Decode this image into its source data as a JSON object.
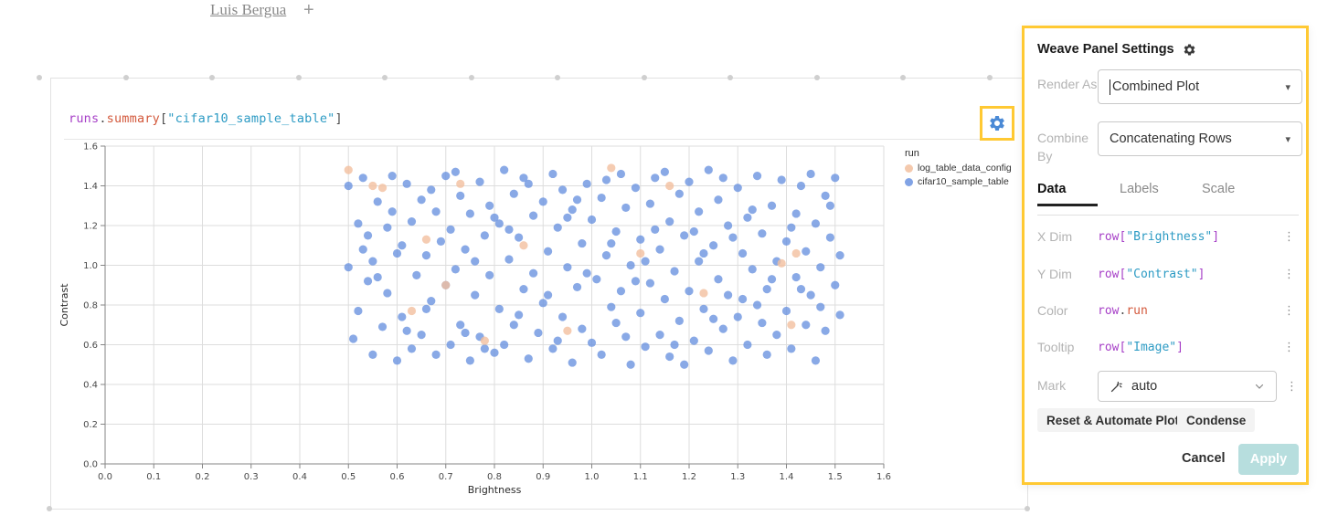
{
  "colors": {
    "highlight": "#FFC933",
    "gear_blue": "#4B8AD6",
    "apply_bg": "#B7DEDE",
    "series_peach": "#F2BF9F",
    "series_blue": "#6B93E0"
  },
  "breadcrumb": {
    "user": "Luis Bergua",
    "add": "+"
  },
  "panel": {
    "expression_tokens": [
      {
        "t": "runs",
        "c": "purple"
      },
      {
        "t": ".",
        "c": "plain"
      },
      {
        "t": "summary",
        "c": "orange"
      },
      {
        "t": "[",
        "c": "plain"
      },
      {
        "t": "\"cifar10_sample_table\"",
        "c": "string"
      },
      {
        "t": "]",
        "c": "plain"
      }
    ]
  },
  "chart_data": {
    "type": "scatter",
    "title": "",
    "xlabel": "Brightness",
    "ylabel": "Contrast",
    "xlim": [
      0,
      1.6
    ],
    "ylim": [
      0,
      1.6
    ],
    "xtick_step": 0.1,
    "ytick_step": 0.2,
    "grid": true,
    "legend_title": "run",
    "legend_position": "right",
    "series": [
      {
        "name": "log_table_data_config",
        "color": "#F2BF9F",
        "points": [
          [
            0.5,
            1.48
          ],
          [
            0.55,
            1.4
          ],
          [
            0.57,
            1.39
          ],
          [
            0.66,
            1.13
          ],
          [
            0.7,
            0.9
          ],
          [
            0.73,
            1.41
          ],
          [
            0.86,
            1.1
          ],
          [
            1.04,
            1.49
          ],
          [
            1.16,
            1.4
          ],
          [
            1.1,
            1.06
          ],
          [
            1.39,
            1.01
          ],
          [
            1.42,
            1.06
          ],
          [
            1.23,
            0.86
          ],
          [
            0.95,
            0.67
          ],
          [
            0.78,
            0.62
          ],
          [
            1.41,
            0.7
          ],
          [
            0.63,
            0.77
          ]
        ]
      },
      {
        "name": "cifar10_sample_table",
        "color": "#6B93E0",
        "points": [
          [
            0.5,
            1.4
          ],
          [
            0.5,
            0.99
          ],
          [
            0.51,
            0.63
          ],
          [
            0.52,
            1.21
          ],
          [
            0.52,
            0.77
          ],
          [
            0.53,
            1.44
          ],
          [
            0.54,
            0.92
          ],
          [
            0.55,
            0.55
          ],
          [
            0.55,
            1.02
          ],
          [
            0.56,
            1.32
          ],
          [
            0.57,
            0.69
          ],
          [
            0.58,
            1.19
          ],
          [
            0.58,
            0.86
          ],
          [
            0.59,
            1.45
          ],
          [
            0.6,
            0.52
          ],
          [
            0.61,
            1.1
          ],
          [
            0.61,
            0.74
          ],
          [
            0.62,
            1.41
          ],
          [
            0.63,
            0.58
          ],
          [
            0.63,
            1.22
          ],
          [
            0.64,
            0.95
          ],
          [
            0.65,
            1.33
          ],
          [
            0.65,
            0.65
          ],
          [
            0.66,
            1.05
          ],
          [
            0.67,
            0.82
          ],
          [
            0.68,
            1.27
          ],
          [
            0.68,
            0.55
          ],
          [
            0.69,
            1.12
          ],
          [
            0.7,
            0.9
          ],
          [
            0.7,
            1.45
          ],
          [
            0.71,
            0.6
          ],
          [
            0.71,
            1.18
          ],
          [
            0.72,
            0.98
          ],
          [
            0.73,
            1.35
          ],
          [
            0.73,
            0.7
          ],
          [
            0.74,
            1.08
          ],
          [
            0.75,
            0.52
          ],
          [
            0.75,
            1.26
          ],
          [
            0.76,
            0.85
          ],
          [
            0.77,
            1.42
          ],
          [
            0.77,
            0.64
          ],
          [
            0.78,
            1.15
          ],
          [
            0.79,
            0.95
          ],
          [
            0.79,
            1.3
          ],
          [
            0.8,
            0.56
          ],
          [
            0.81,
            1.21
          ],
          [
            0.81,
            0.78
          ],
          [
            0.82,
            1.48
          ],
          [
            0.82,
            0.6
          ],
          [
            0.83,
            1.03
          ],
          [
            0.84,
            1.36
          ],
          [
            0.84,
            0.7
          ],
          [
            0.85,
            1.14
          ],
          [
            0.86,
            0.88
          ],
          [
            0.86,
            1.44
          ],
          [
            0.87,
            0.53
          ],
          [
            0.88,
            1.25
          ],
          [
            0.88,
            0.96
          ],
          [
            0.89,
            0.66
          ],
          [
            0.9,
            1.32
          ],
          [
            0.9,
            0.81
          ],
          [
            0.91,
            1.07
          ],
          [
            0.92,
            1.46
          ],
          [
            0.92,
            0.58
          ],
          [
            0.93,
            1.19
          ],
          [
            0.94,
            0.74
          ],
          [
            0.94,
            1.38
          ],
          [
            0.95,
            0.99
          ],
          [
            0.96,
            1.28
          ],
          [
            0.96,
            0.51
          ],
          [
            0.97,
            0.89
          ],
          [
            0.98,
            1.11
          ],
          [
            0.98,
            0.68
          ],
          [
            0.99,
            1.41
          ],
          [
            1.0,
            0.61
          ],
          [
            1.0,
            1.23
          ],
          [
            1.01,
            0.93
          ],
          [
            1.02,
            1.34
          ],
          [
            1.02,
            0.55
          ],
          [
            1.03,
            1.05
          ],
          [
            1.04,
            0.79
          ],
          [
            1.05,
            1.17
          ],
          [
            1.05,
            0.71
          ],
          [
            1.06,
            1.46
          ],
          [
            1.06,
            0.87
          ],
          [
            1.07,
            1.29
          ],
          [
            1.08,
            0.5
          ],
          [
            1.08,
            1.0
          ],
          [
            1.09,
            1.39
          ],
          [
            1.1,
            0.76
          ],
          [
            1.1,
            1.13
          ],
          [
            1.11,
            0.59
          ],
          [
            1.12,
            1.31
          ],
          [
            1.12,
            0.91
          ],
          [
            1.13,
            1.44
          ],
          [
            1.14,
            0.65
          ],
          [
            1.14,
            1.08
          ],
          [
            1.15,
            0.83
          ],
          [
            1.16,
            1.22
          ],
          [
            1.16,
            0.54
          ],
          [
            1.17,
            0.97
          ],
          [
            1.18,
            1.36
          ],
          [
            1.18,
            0.72
          ],
          [
            1.19,
            1.15
          ],
          [
            1.2,
            0.87
          ],
          [
            1.2,
            1.42
          ],
          [
            1.21,
            0.62
          ],
          [
            1.22,
            1.02
          ],
          [
            1.22,
            1.27
          ],
          [
            1.23,
            0.78
          ],
          [
            1.24,
            1.48
          ],
          [
            1.24,
            0.57
          ],
          [
            1.25,
            1.1
          ],
          [
            1.26,
            0.93
          ],
          [
            1.26,
            1.33
          ],
          [
            1.27,
            0.68
          ],
          [
            1.28,
            1.2
          ],
          [
            1.28,
            0.85
          ],
          [
            1.29,
            0.52
          ],
          [
            1.3,
            1.39
          ],
          [
            1.3,
            0.74
          ],
          [
            1.31,
            1.06
          ],
          [
            1.32,
            1.24
          ],
          [
            1.32,
            0.6
          ],
          [
            1.33,
            0.98
          ],
          [
            1.34,
            1.45
          ],
          [
            1.34,
            0.8
          ],
          [
            1.35,
            1.16
          ],
          [
            1.36,
            0.55
          ],
          [
            1.36,
            0.88
          ],
          [
            1.37,
            1.3
          ],
          [
            1.38,
            0.65
          ],
          [
            1.38,
            1.02
          ],
          [
            1.39,
            1.43
          ],
          [
            1.4,
            0.77
          ],
          [
            1.4,
            1.12
          ],
          [
            1.41,
            0.58
          ],
          [
            1.42,
            1.26
          ],
          [
            1.42,
            0.94
          ],
          [
            1.43,
            1.4
          ],
          [
            1.44,
            0.7
          ],
          [
            1.44,
            1.07
          ],
          [
            1.45,
            0.85
          ],
          [
            1.46,
            1.21
          ],
          [
            1.46,
            0.52
          ],
          [
            1.47,
            0.99
          ],
          [
            1.48,
            1.35
          ],
          [
            1.48,
            0.67
          ],
          [
            1.49,
            1.14
          ],
          [
            1.5,
            0.9
          ],
          [
            1.5,
            1.44
          ],
          [
            1.51,
            0.75
          ],
          [
            0.53,
            1.08
          ],
          [
            0.56,
            0.94
          ],
          [
            0.59,
            1.27
          ],
          [
            0.62,
            0.67
          ],
          [
            0.67,
            1.38
          ],
          [
            0.72,
            1.47
          ],
          [
            0.74,
            0.66
          ],
          [
            0.78,
            0.58
          ],
          [
            0.83,
            1.18
          ],
          [
            0.87,
            1.41
          ],
          [
            0.91,
            0.85
          ],
          [
            0.93,
            0.62
          ],
          [
            0.97,
            1.33
          ],
          [
            0.99,
            0.96
          ],
          [
            1.03,
            1.43
          ],
          [
            1.07,
            0.64
          ],
          [
            1.09,
            0.92
          ],
          [
            1.13,
            1.18
          ],
          [
            1.15,
            1.47
          ],
          [
            1.17,
            0.6
          ],
          [
            1.21,
            1.17
          ],
          [
            1.25,
            0.73
          ],
          [
            1.27,
            1.44
          ],
          [
            1.31,
            0.83
          ],
          [
            1.33,
            1.28
          ],
          [
            1.37,
            0.93
          ],
          [
            1.41,
            1.19
          ],
          [
            1.45,
            1.46
          ],
          [
            1.47,
            0.79
          ],
          [
            1.49,
            1.3
          ],
          [
            0.54,
            1.15
          ],
          [
            0.6,
            1.06
          ],
          [
            0.66,
            0.78
          ],
          [
            0.76,
            1.02
          ],
          [
            0.8,
            1.24
          ],
          [
            0.85,
            0.75
          ],
          [
            0.95,
            1.24
          ],
          [
            1.04,
            1.11
          ],
          [
            1.11,
            1.02
          ],
          [
            1.19,
            0.5
          ],
          [
            1.23,
            1.06
          ],
          [
            1.29,
            1.14
          ],
          [
            1.35,
            0.71
          ],
          [
            1.43,
            0.88
          ],
          [
            1.51,
            1.05
          ]
        ]
      }
    ]
  },
  "settings": {
    "title": "Weave Panel Settings",
    "render_as": {
      "label": "Render As",
      "value": "Combined Plot"
    },
    "combine_by": {
      "label": "Combine By",
      "value": "Concatenating Rows"
    },
    "tabs": [
      {
        "label": "Data"
      },
      {
        "label": "Labels"
      },
      {
        "label": "Scale"
      }
    ],
    "fields": [
      {
        "label": "X Dim",
        "tokens": [
          {
            "t": "row",
            "c": "purple"
          },
          {
            "t": "[",
            "c": "purple"
          },
          {
            "t": "\"Brightness\"",
            "c": "string"
          },
          {
            "t": "]",
            "c": "purple"
          }
        ]
      },
      {
        "label": "Y Dim",
        "tokens": [
          {
            "t": "row",
            "c": "purple"
          },
          {
            "t": "[",
            "c": "purple"
          },
          {
            "t": "\"Contrast\"",
            "c": "string"
          },
          {
            "t": "]",
            "c": "purple"
          }
        ]
      },
      {
        "label": "Color",
        "tokens": [
          {
            "t": "row",
            "c": "purple"
          },
          {
            "t": ".",
            "c": "plain"
          },
          {
            "t": "run",
            "c": "orange"
          }
        ]
      },
      {
        "label": "Tooltip",
        "tokens": [
          {
            "t": "row",
            "c": "purple"
          },
          {
            "t": "[",
            "c": "purple"
          },
          {
            "t": "\"Image\"",
            "c": "string"
          },
          {
            "t": "]",
            "c": "purple"
          }
        ]
      }
    ],
    "mark": {
      "label": "Mark",
      "value": "auto"
    },
    "actions": {
      "reset": "Reset & Automate Plot",
      "condense": "Condense"
    },
    "footer": {
      "cancel": "Cancel",
      "apply": "Apply"
    }
  }
}
